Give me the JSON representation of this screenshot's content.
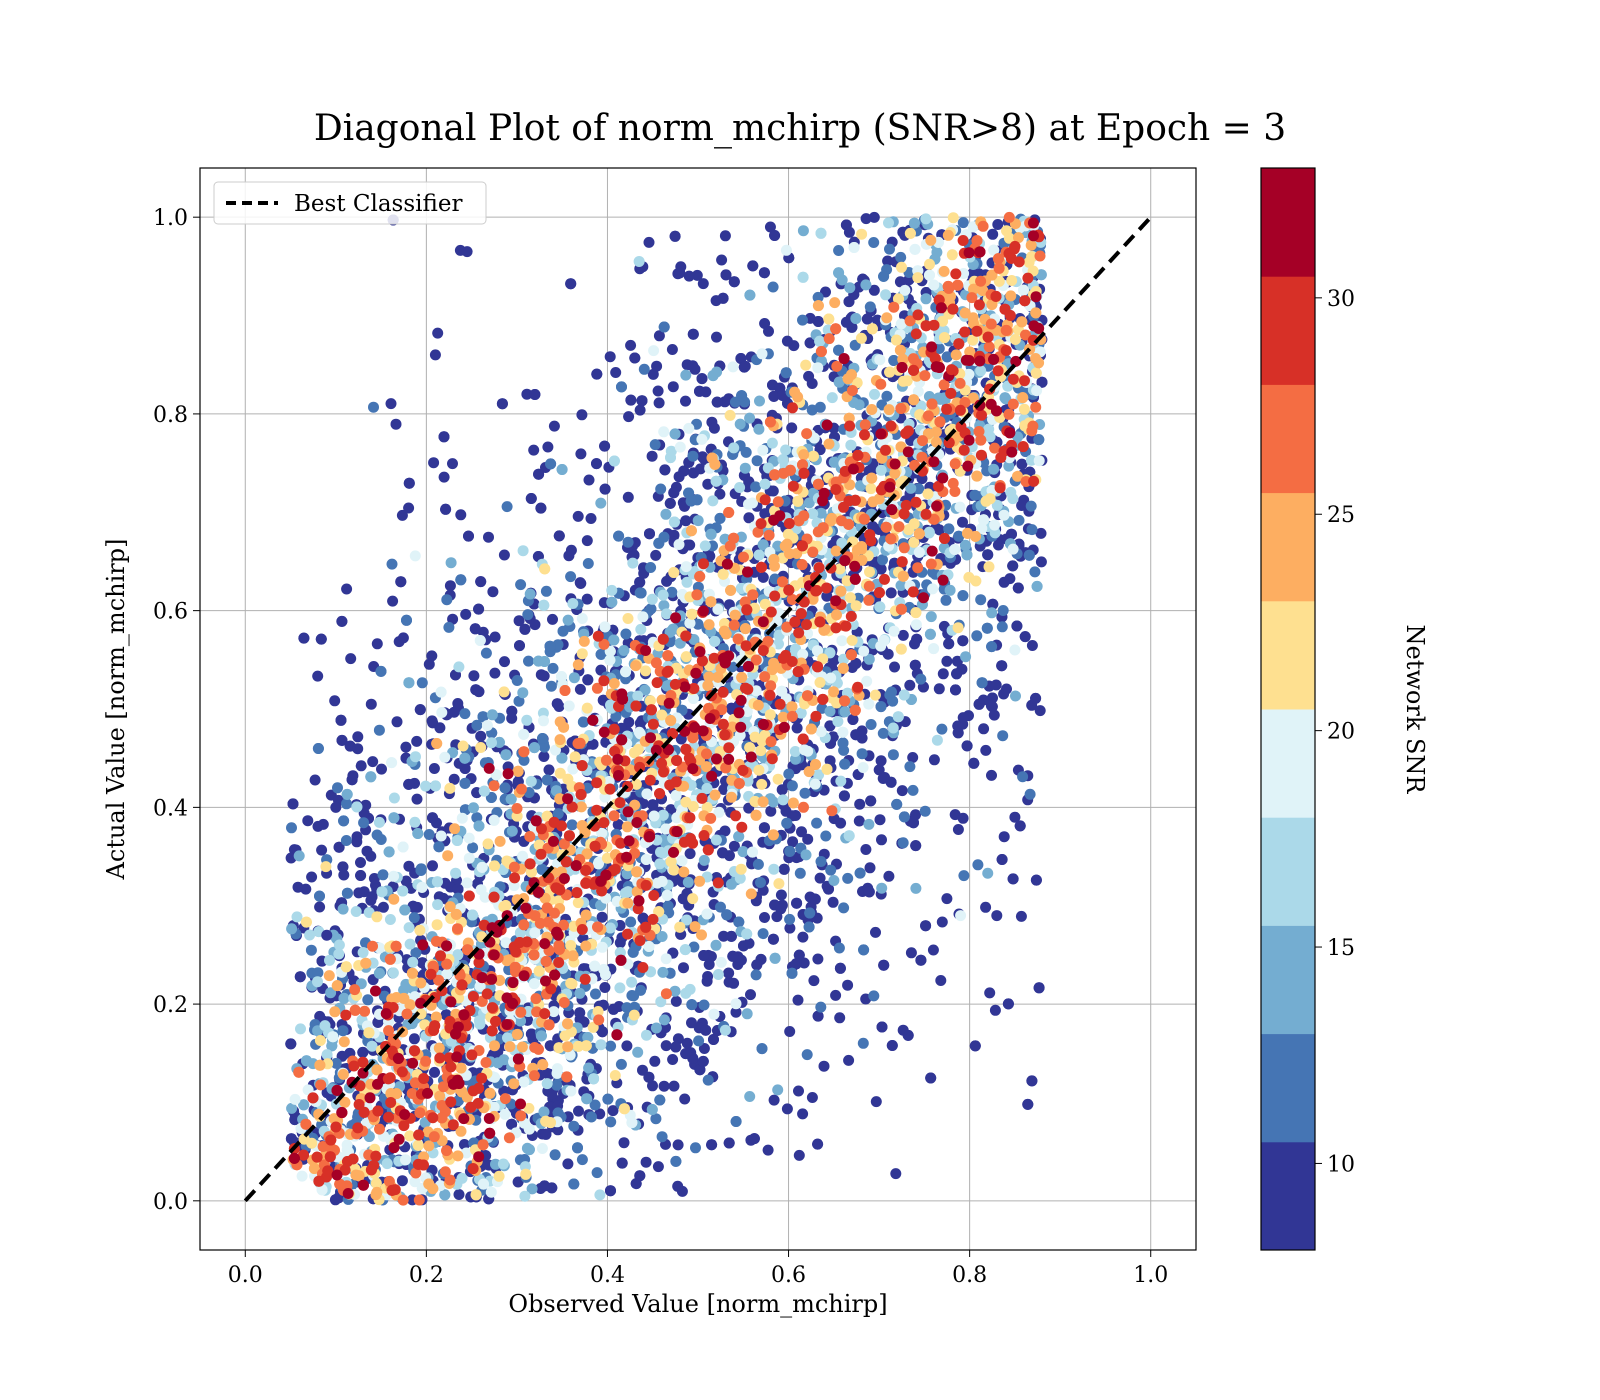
{
  "chart_data": {
    "type": "scatter",
    "title": "Diagonal Plot of norm_mchirp (SNR>8) at Epoch = 3",
    "xlabel": "Observed Value [norm_mchirp]",
    "ylabel": "Actual Value [norm_mchirp]",
    "xlim": [
      -0.05,
      1.05
    ],
    "ylim": [
      -0.05,
      1.05
    ],
    "x_ticks": [
      "0.0",
      "0.2",
      "0.4",
      "0.6",
      "0.8",
      "1.0"
    ],
    "y_ticks": [
      "0.0",
      "0.2",
      "0.4",
      "0.6",
      "0.8",
      "1.0"
    ],
    "grid": true,
    "legend": {
      "position": "top-left",
      "entries": [
        "Best Classifier"
      ]
    },
    "reference_line": {
      "name": "Best Classifier",
      "x": [
        0.0,
        1.0
      ],
      "y": [
        0.0,
        1.0
      ],
      "style": "dashed",
      "color": "#000000"
    },
    "colorbar": {
      "label": "Network SNR",
      "range": [
        8,
        33
      ],
      "ticks": [
        "10",
        "15",
        "20",
        "25",
        "30"
      ],
      "colormap": "RdYlBu_r",
      "bin_colors": [
        "#313695",
        "#4575b4",
        "#74add1",
        "#abd9e9",
        "#e0f3f8",
        "#fee090",
        "#fdae61",
        "#f46d43",
        "#d73027",
        "#a50026"
      ]
    },
    "series": {
      "description_values": "Predicted vs true norm_mchirp with points colored by network SNR",
      "points": [
        {
          "x": 0.155,
          "y": 0.157,
          "snr": 29
        },
        {
          "x": 0.158,
          "y": 0.124,
          "snr": 29
        },
        {
          "x": 0.275,
          "y": 0.25,
          "snr": 32
        },
        {
          "x": 0.475,
          "y": 0.525,
          "snr": 29
        },
        {
          "x": 0.63,
          "y": 0.62,
          "snr": 29
        },
        {
          "x": 0.73,
          "y": 0.707,
          "snr": 29
        },
        {
          "x": 0.845,
          "y": 0.9,
          "snr": 28
        },
        {
          "x": 0.78,
          "y": 0.845,
          "snr": 28
        },
        {
          "x": 0.32,
          "y": 0.29,
          "snr": 27
        },
        {
          "x": 0.555,
          "y": 0.52,
          "snr": 28
        },
        {
          "x": 0.62,
          "y": 0.78,
          "snr": 27
        },
        {
          "x": 0.245,
          "y": 0.965,
          "snr": 9
        },
        {
          "x": 0.21,
          "y": 0.86,
          "snr": 9
        },
        {
          "x": 0.1,
          "y": 0.4,
          "snr": 9
        },
        {
          "x": 0.09,
          "y": 0.27,
          "snr": 9
        },
        {
          "x": 0.83,
          "y": 0.29,
          "snr": 9
        },
        {
          "x": 0.85,
          "y": 0.39,
          "snr": 9
        },
        {
          "x": 0.76,
          "y": 0.255,
          "snr": 9
        },
        {
          "x": 0.58,
          "y": 0.99,
          "snr": 9
        },
        {
          "x": 0.435,
          "y": 0.955,
          "snr": 16
        },
        {
          "x": 0.82,
          "y": 0.333,
          "snr": 15
        },
        {
          "x": 0.85,
          "y": 0.56,
          "snr": 19
        },
        {
          "x": 0.79,
          "y": 0.29,
          "snr": 20
        }
      ]
    }
  }
}
